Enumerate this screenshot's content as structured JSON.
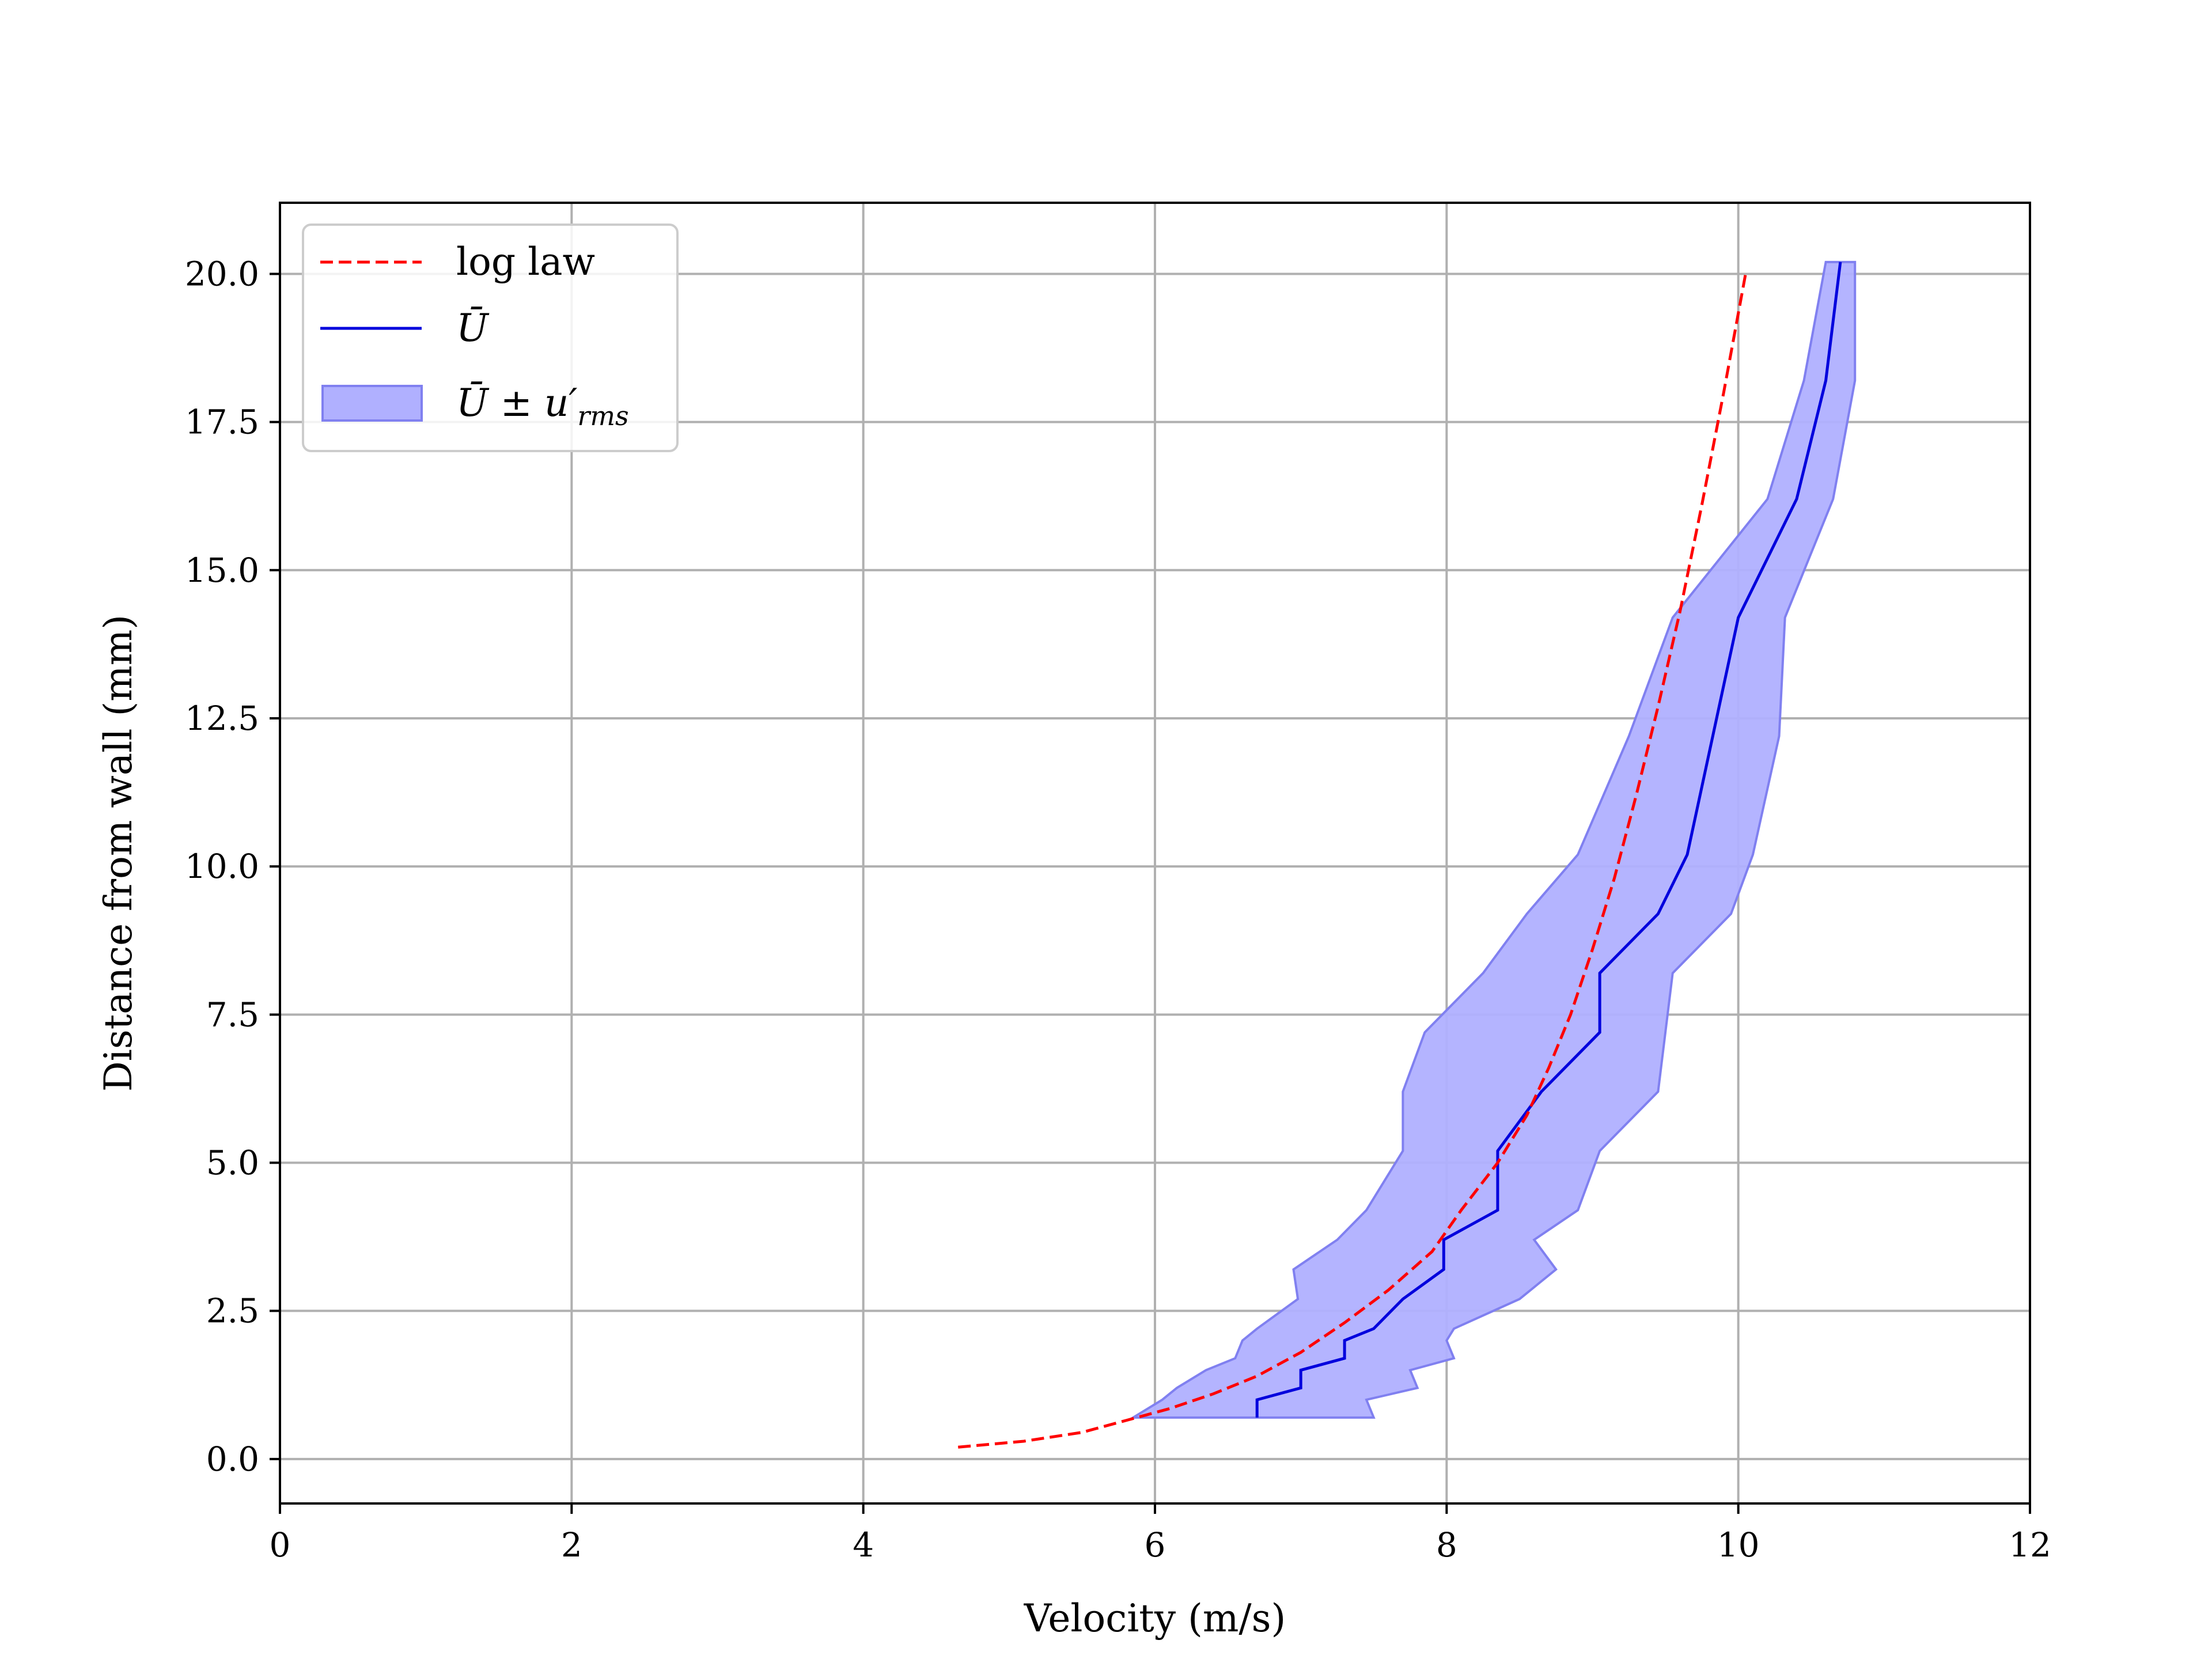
{
  "chart_data": {
    "type": "line",
    "xlabel": "Velocity (m/s)",
    "ylabel": "Distance from wall (mm)",
    "xlim": [
      0,
      12
    ],
    "ylim": [
      -0.75,
      21.2
    ],
    "xticks": [
      0,
      2,
      4,
      6,
      8,
      10,
      12
    ],
    "xtick_labels": [
      "0",
      "2",
      "4",
      "6",
      "8",
      "10",
      "12"
    ],
    "yticks": [
      0,
      2.5,
      5,
      7.5,
      10,
      12.5,
      15,
      17.5,
      20
    ],
    "ytick_labels": [
      "0.0",
      "2.5",
      "5.0",
      "7.5",
      "10.0",
      "12.5",
      "15.0",
      "17.5",
      "20.0"
    ],
    "grid": true,
    "legend_position": "upper-left",
    "colors": {
      "log_law": "#ff0000",
      "mean": "#0000dd",
      "band_fill": "#b0b0ff",
      "band_edge": "#8080f0"
    },
    "series": [
      {
        "name": "log law",
        "style": "dashed",
        "x": [
          4.65,
          5.1,
          5.5,
          5.8,
          6.1,
          6.4,
          6.7,
          7.0,
          7.3,
          7.6,
          7.9,
          8.1,
          8.35,
          8.55,
          8.7,
          8.85,
          9.0,
          9.15,
          9.3,
          9.45,
          9.6,
          9.75,
          9.9,
          10.05
        ],
        "y": [
          0.2,
          0.3,
          0.45,
          0.65,
          0.85,
          1.1,
          1.4,
          1.8,
          2.3,
          2.85,
          3.5,
          4.2,
          5.0,
          5.8,
          6.6,
          7.5,
          8.6,
          9.8,
          11.2,
          12.7,
          14.3,
          16.1,
          18.0,
          20.0
        ]
      },
      {
        "name": "Ū",
        "style": "solid",
        "x": [
          6.7,
          6.7,
          7.0,
          7.0,
          7.3,
          7.3,
          7.5,
          7.7,
          7.98,
          7.98,
          8.35,
          8.35,
          8.65,
          9.05,
          9.05,
          9.45,
          9.65,
          10.0,
          10.4,
          10.6,
          10.7
        ],
        "y": [
          0.7,
          1.0,
          1.2,
          1.5,
          1.7,
          2.0,
          2.2,
          2.7,
          3.2,
          3.7,
          4.2,
          5.2,
          6.2,
          7.2,
          8.2,
          9.2,
          10.2,
          14.2,
          16.2,
          18.2,
          20.2
        ]
      }
    ],
    "band": {
      "name": "Ū ± u′_rms",
      "y": [
        0.7,
        1.0,
        1.2,
        1.5,
        1.7,
        2.0,
        2.2,
        2.7,
        3.2,
        3.7,
        4.2,
        5.2,
        6.2,
        7.2,
        8.2,
        9.2,
        10.2,
        12.2,
        14.2,
        16.2,
        18.2,
        20.2
      ],
      "lower": [
        5.85,
        6.05,
        6.15,
        6.35,
        6.55,
        6.6,
        6.7,
        6.98,
        6.95,
        7.25,
        7.45,
        7.7,
        7.7,
        7.85,
        8.25,
        8.55,
        8.9,
        9.25,
        9.55,
        10.2,
        10.45,
        10.6
      ],
      "upper": [
        7.5,
        7.45,
        7.8,
        7.75,
        8.05,
        8.0,
        8.05,
        8.5,
        8.75,
        8.6,
        8.9,
        9.05,
        9.45,
        9.5,
        9.55,
        9.95,
        10.1,
        10.28,
        10.32,
        10.65,
        10.8,
        10.8
      ]
    },
    "legend": [
      {
        "key": "log law",
        "label": "log law",
        "kind": "dashed"
      },
      {
        "key": "mean",
        "label": "Ū",
        "kind": "solid"
      },
      {
        "key": "band",
        "label": "Ū ± u′",
        "sub": "rms",
        "kind": "patch"
      }
    ]
  }
}
